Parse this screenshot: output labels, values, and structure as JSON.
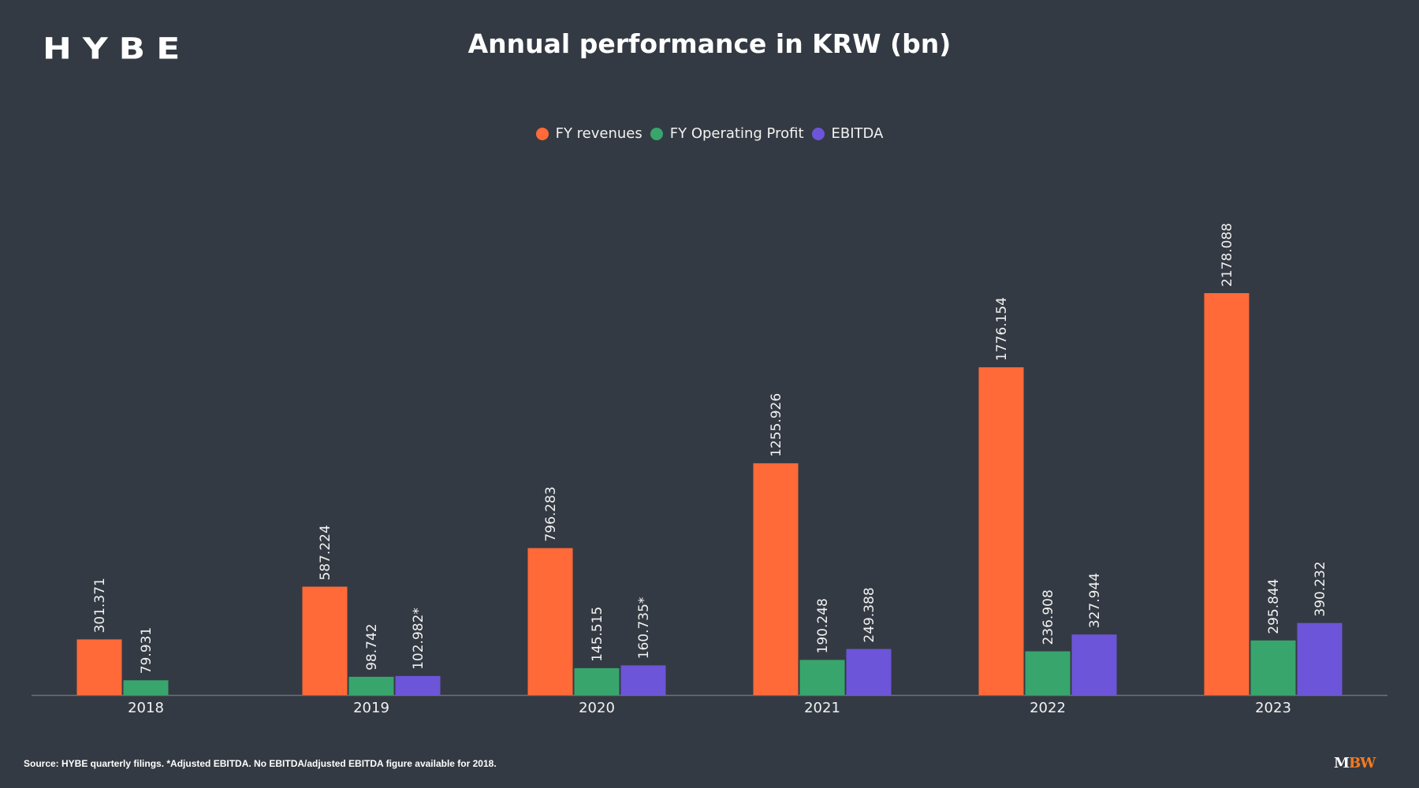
{
  "header": {
    "logo": "HYBE",
    "title": "Annual performance in KRW (bn)"
  },
  "footer": {
    "source": "Source: HYBE quarterly filings. *Adjusted EBITDA. No EBITDA/adjusted EBITDA figure available for 2018.",
    "brand_m": "M",
    "brand_bw": "BW"
  },
  "chart_data": {
    "type": "bar",
    "title": "Annual performance in KRW (bn)",
    "xlabel": "",
    "ylabel": "",
    "categories": [
      "2018",
      "2019",
      "2020",
      "2021",
      "2022",
      "2023"
    ],
    "series": [
      {
        "name": "FY revenues",
        "color": "#ff6a38",
        "values": [
          301.371,
          587.224,
          796.283,
          1255.926,
          1776.154,
          2178.088
        ],
        "labels": [
          "301.371",
          "587.224",
          "796.283",
          "1255.926",
          "1776.154",
          "2178.088"
        ]
      },
      {
        "name": "FY Operating Profit",
        "color": "#38a56d",
        "values": [
          79.931,
          98.742,
          145.515,
          190.248,
          236.908,
          295.844
        ],
        "labels": [
          "79.931",
          "98.742",
          "145.515",
          "190.248",
          "236.908",
          "295.844"
        ]
      },
      {
        "name": "EBITDA",
        "color": "#6c55d8",
        "values": [
          null,
          102.982,
          160.735,
          249.388,
          327.944,
          390.232
        ],
        "labels": [
          null,
          "102.982*",
          "160.735*",
          "249.388",
          "327.944",
          "390.232"
        ]
      }
    ],
    "ylim": [
      0,
      2178.088
    ],
    "yaxis_visible": false,
    "grid": false,
    "legend_position": "top-center",
    "data_labels": "rotated-vertical-above-bars"
  }
}
